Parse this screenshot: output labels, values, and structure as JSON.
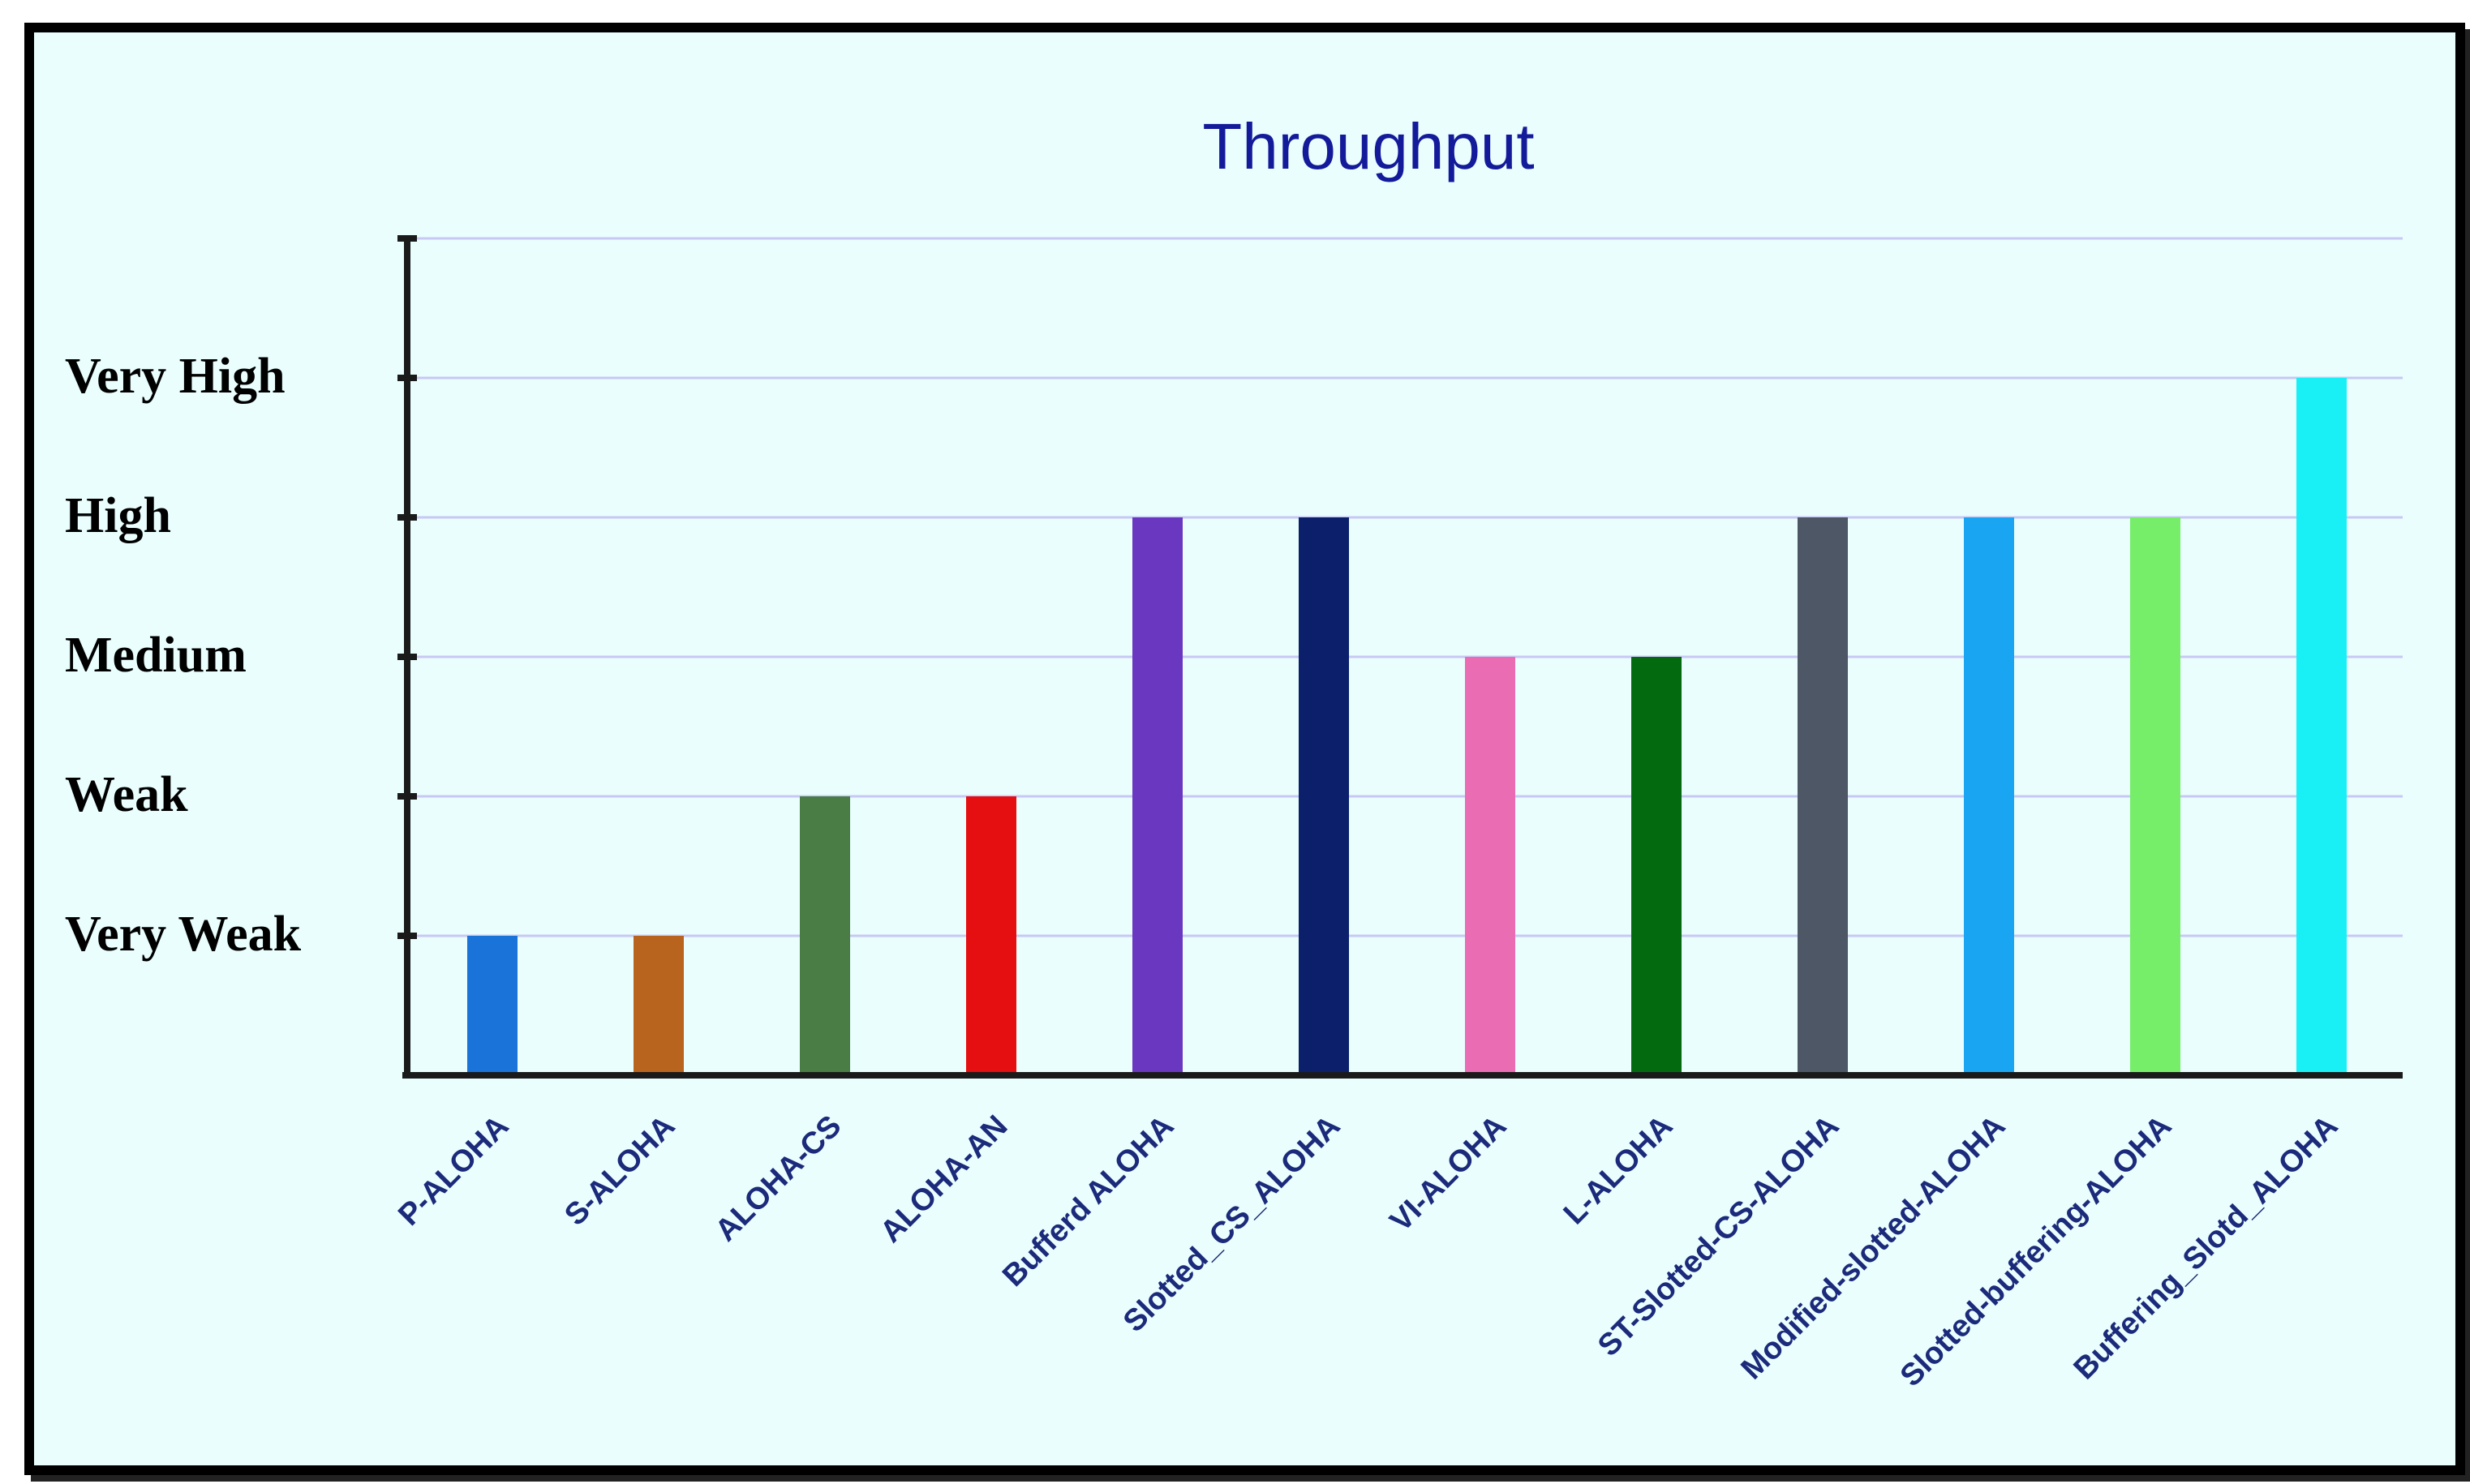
{
  "chart_data": {
    "type": "bar",
    "title": "Throughput",
    "xlabel": "",
    "ylabel": "",
    "ylim": [
      0,
      6
    ],
    "grid": true,
    "level_labels": [
      "Very Weak",
      "Weak",
      "Medium",
      "High",
      "Very High"
    ],
    "level_values": [
      1,
      2,
      3,
      4,
      5
    ],
    "categories": [
      "P-ALOHA",
      "S-ALOHA",
      "ALOHA-CS",
      "ALOHA-AN",
      "Bufferd ALOHA",
      "Slotted_CS_ALOHA",
      "VI-ALOHA",
      "L-ALOHA",
      "ST-Slotted-CS-ALOHA",
      "Modified-slotted-ALOHA",
      "Slotted-buffering-ALOHA",
      "Buffering_Slotd_ALOHA"
    ],
    "values": [
      1,
      1,
      2,
      2,
      4,
      4,
      3,
      3,
      4,
      4,
      4,
      5
    ],
    "colors": [
      "#1a73d9",
      "#b8641f",
      "#4a7d45",
      "#e50e10",
      "#6a37c1",
      "#0b1f6b",
      "#ea6cb3",
      "#046a10",
      "#4d5766",
      "#1aa5f3",
      "#77ee6a",
      "#19f0f6"
    ],
    "gridline_color": "#c8c8f4",
    "axis_color": "#1a1a1a"
  }
}
